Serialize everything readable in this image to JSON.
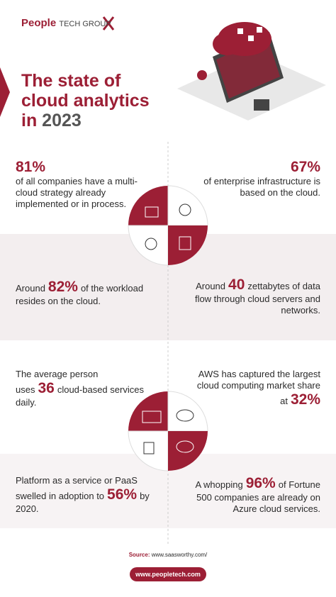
{
  "logo": {
    "primary": "People",
    "secondary": "TECH GROUP"
  },
  "title": {
    "text": "The state of cloud analytics in",
    "year": "2023"
  },
  "stats": [
    {
      "highlight": "81%",
      "text": "of all companies have a multi-cloud strategy already implemented or in process."
    },
    {
      "highlight": "67%",
      "text": "of enterprise infrastructure is based on the cloud."
    },
    {
      "before": "Around",
      "highlight": "82%",
      "text": "of the workload resides on the cloud."
    },
    {
      "before": "Around",
      "highlight": "40",
      "text": "zettabytes of data flow through cloud servers and networks."
    },
    {
      "before": "The average person uses",
      "highlight": "36",
      "text": "cloud-based services daily."
    },
    {
      "before": "AWS has captured the largest cloud computing market share at",
      "highlight": "32%"
    },
    {
      "before": "Platform as a service or PaaS swelled in adoption to",
      "highlight": "56%",
      "text": "by 2020."
    },
    {
      "before": "A whopping",
      "highlight": "96%",
      "text": "of Fortune 500 companies are already on Azure cloud services."
    }
  ],
  "source": {
    "label": "Source:",
    "url": "www.saasworthy.com/"
  },
  "website": "www.peopletech.com"
}
